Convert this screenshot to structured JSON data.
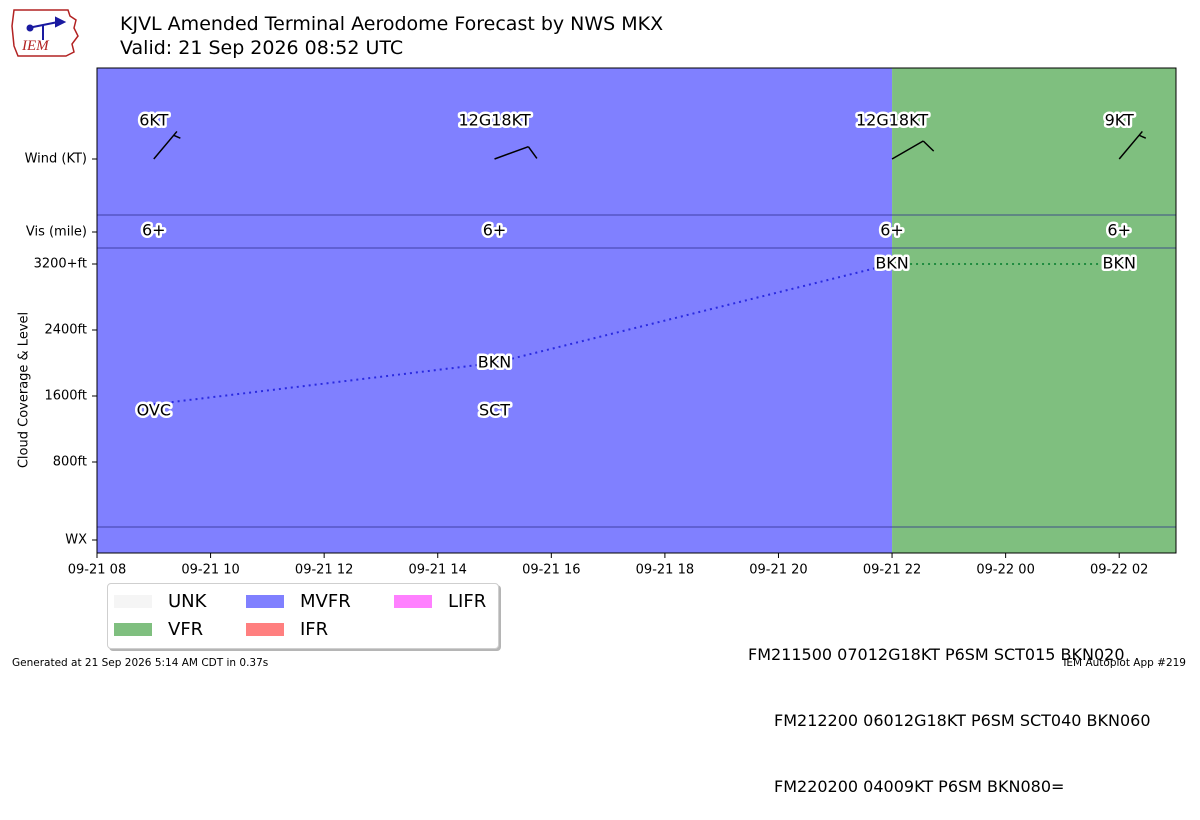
{
  "header": {
    "title": "KJVL Amended Terminal Aerodome Forecast by NWS MKX",
    "subtitle": "Valid: 21 Sep 2026 08:52 UTC"
  },
  "logo": {
    "text": "IEM"
  },
  "colors": {
    "mvfr": "#8080ff",
    "vfr": "#7fbf7f",
    "unk": "#f5f5f5",
    "ifr": "#ff7f7f",
    "lifr": "#ff80ff",
    "cloud_line_mvfr": "#2a2ae0",
    "cloud_line_vfr": "#1f8c3f"
  },
  "chart_data": {
    "type": "timeline",
    "time_range": [
      "2026-09-21 08:00",
      "2026-09-22 03:00"
    ],
    "x_tick_labels": [
      "09-21 08",
      "09-21 10",
      "09-21 12",
      "09-21 14",
      "09-21 16",
      "09-21 18",
      "09-21 20",
      "09-21 22",
      "09-22 00",
      "09-22 02"
    ],
    "y_rows": [
      "Wind (KT)",
      "Vis (mile)",
      "3200+ft",
      "2400ft",
      "1600ft",
      "800ft",
      "WX"
    ],
    "ylabel": "Cloud Coverage & Level",
    "flight_category_periods": [
      {
        "category": "MVFR",
        "start": "2026-09-21 08:00",
        "end": "2026-09-21 22:00"
      },
      {
        "category": "VFR",
        "start": "2026-09-21 22:00",
        "end": "2026-09-22 03:00"
      }
    ],
    "forecasts": [
      {
        "time": "2026-09-21 09:00",
        "wind_label": "6KT",
        "wind_dir": 40,
        "wind_speed": 6,
        "vis_label": "6+",
        "clouds": [
          {
            "cover": "OVC",
            "level_ft": 1500
          }
        ]
      },
      {
        "time": "2026-09-21 15:00",
        "wind_label": "12G18KT",
        "wind_dir": 70,
        "wind_speed": 12,
        "vis_label": "6+",
        "clouds": [
          {
            "cover": "SCT",
            "level_ft": 1500
          },
          {
            "cover": "BKN",
            "level_ft": 2000
          }
        ]
      },
      {
        "time": "2026-09-21 22:00",
        "wind_label": "12G18KT",
        "wind_dir": 60,
        "wind_speed": 12,
        "vis_label": "6+",
        "clouds": [
          {
            "cover": "BKN",
            "level_ft": 3200
          }
        ]
      },
      {
        "time": "2026-09-22 02:00",
        "wind_label": "9KT",
        "wind_dir": 40,
        "wind_speed": 9,
        "vis_label": "6+",
        "clouds": [
          {
            "cover": "BKN",
            "level_ft": 3200
          }
        ]
      }
    ],
    "cloud_lines": [
      {
        "from": {
          "time": "2026-09-21 09:00",
          "level_ft": 1500
        },
        "to": {
          "time": "2026-09-21 15:00",
          "level_ft": 2000
        },
        "color_key": "cloud_line_mvfr"
      },
      {
        "from": {
          "time": "2026-09-21 15:00",
          "level_ft": 2000
        },
        "to": {
          "time": "2026-09-21 22:00",
          "level_ft": 3200
        },
        "color_key": "cloud_line_mvfr"
      },
      {
        "from": {
          "time": "2026-09-21 22:00",
          "level_ft": 3200
        },
        "to": {
          "time": "2026-09-22 02:00",
          "level_ft": 3200
        },
        "color_key": "cloud_line_vfr"
      }
    ]
  },
  "legend": [
    {
      "label": "UNK",
      "color_key": "unk"
    },
    {
      "label": "VFR",
      "color_key": "vfr"
    },
    {
      "label": "MVFR",
      "color_key": "mvfr"
    },
    {
      "label": "IFR",
      "color_key": "ifr"
    },
    {
      "label": "LIFR",
      "color_key": "lifr"
    }
  ],
  "taf_text": [
    "FM211500 07012G18KT P6SM SCT015 BKN020",
    "FM212200 06012G18KT P6SM SCT040 BKN060",
    "FM220200 04009KT P6SM BKN080="
  ],
  "footer": {
    "generated": "Generated at 21 Sep 2026 5:14 AM CDT in 0.37s",
    "app": "IEM Autoplot App #219"
  }
}
